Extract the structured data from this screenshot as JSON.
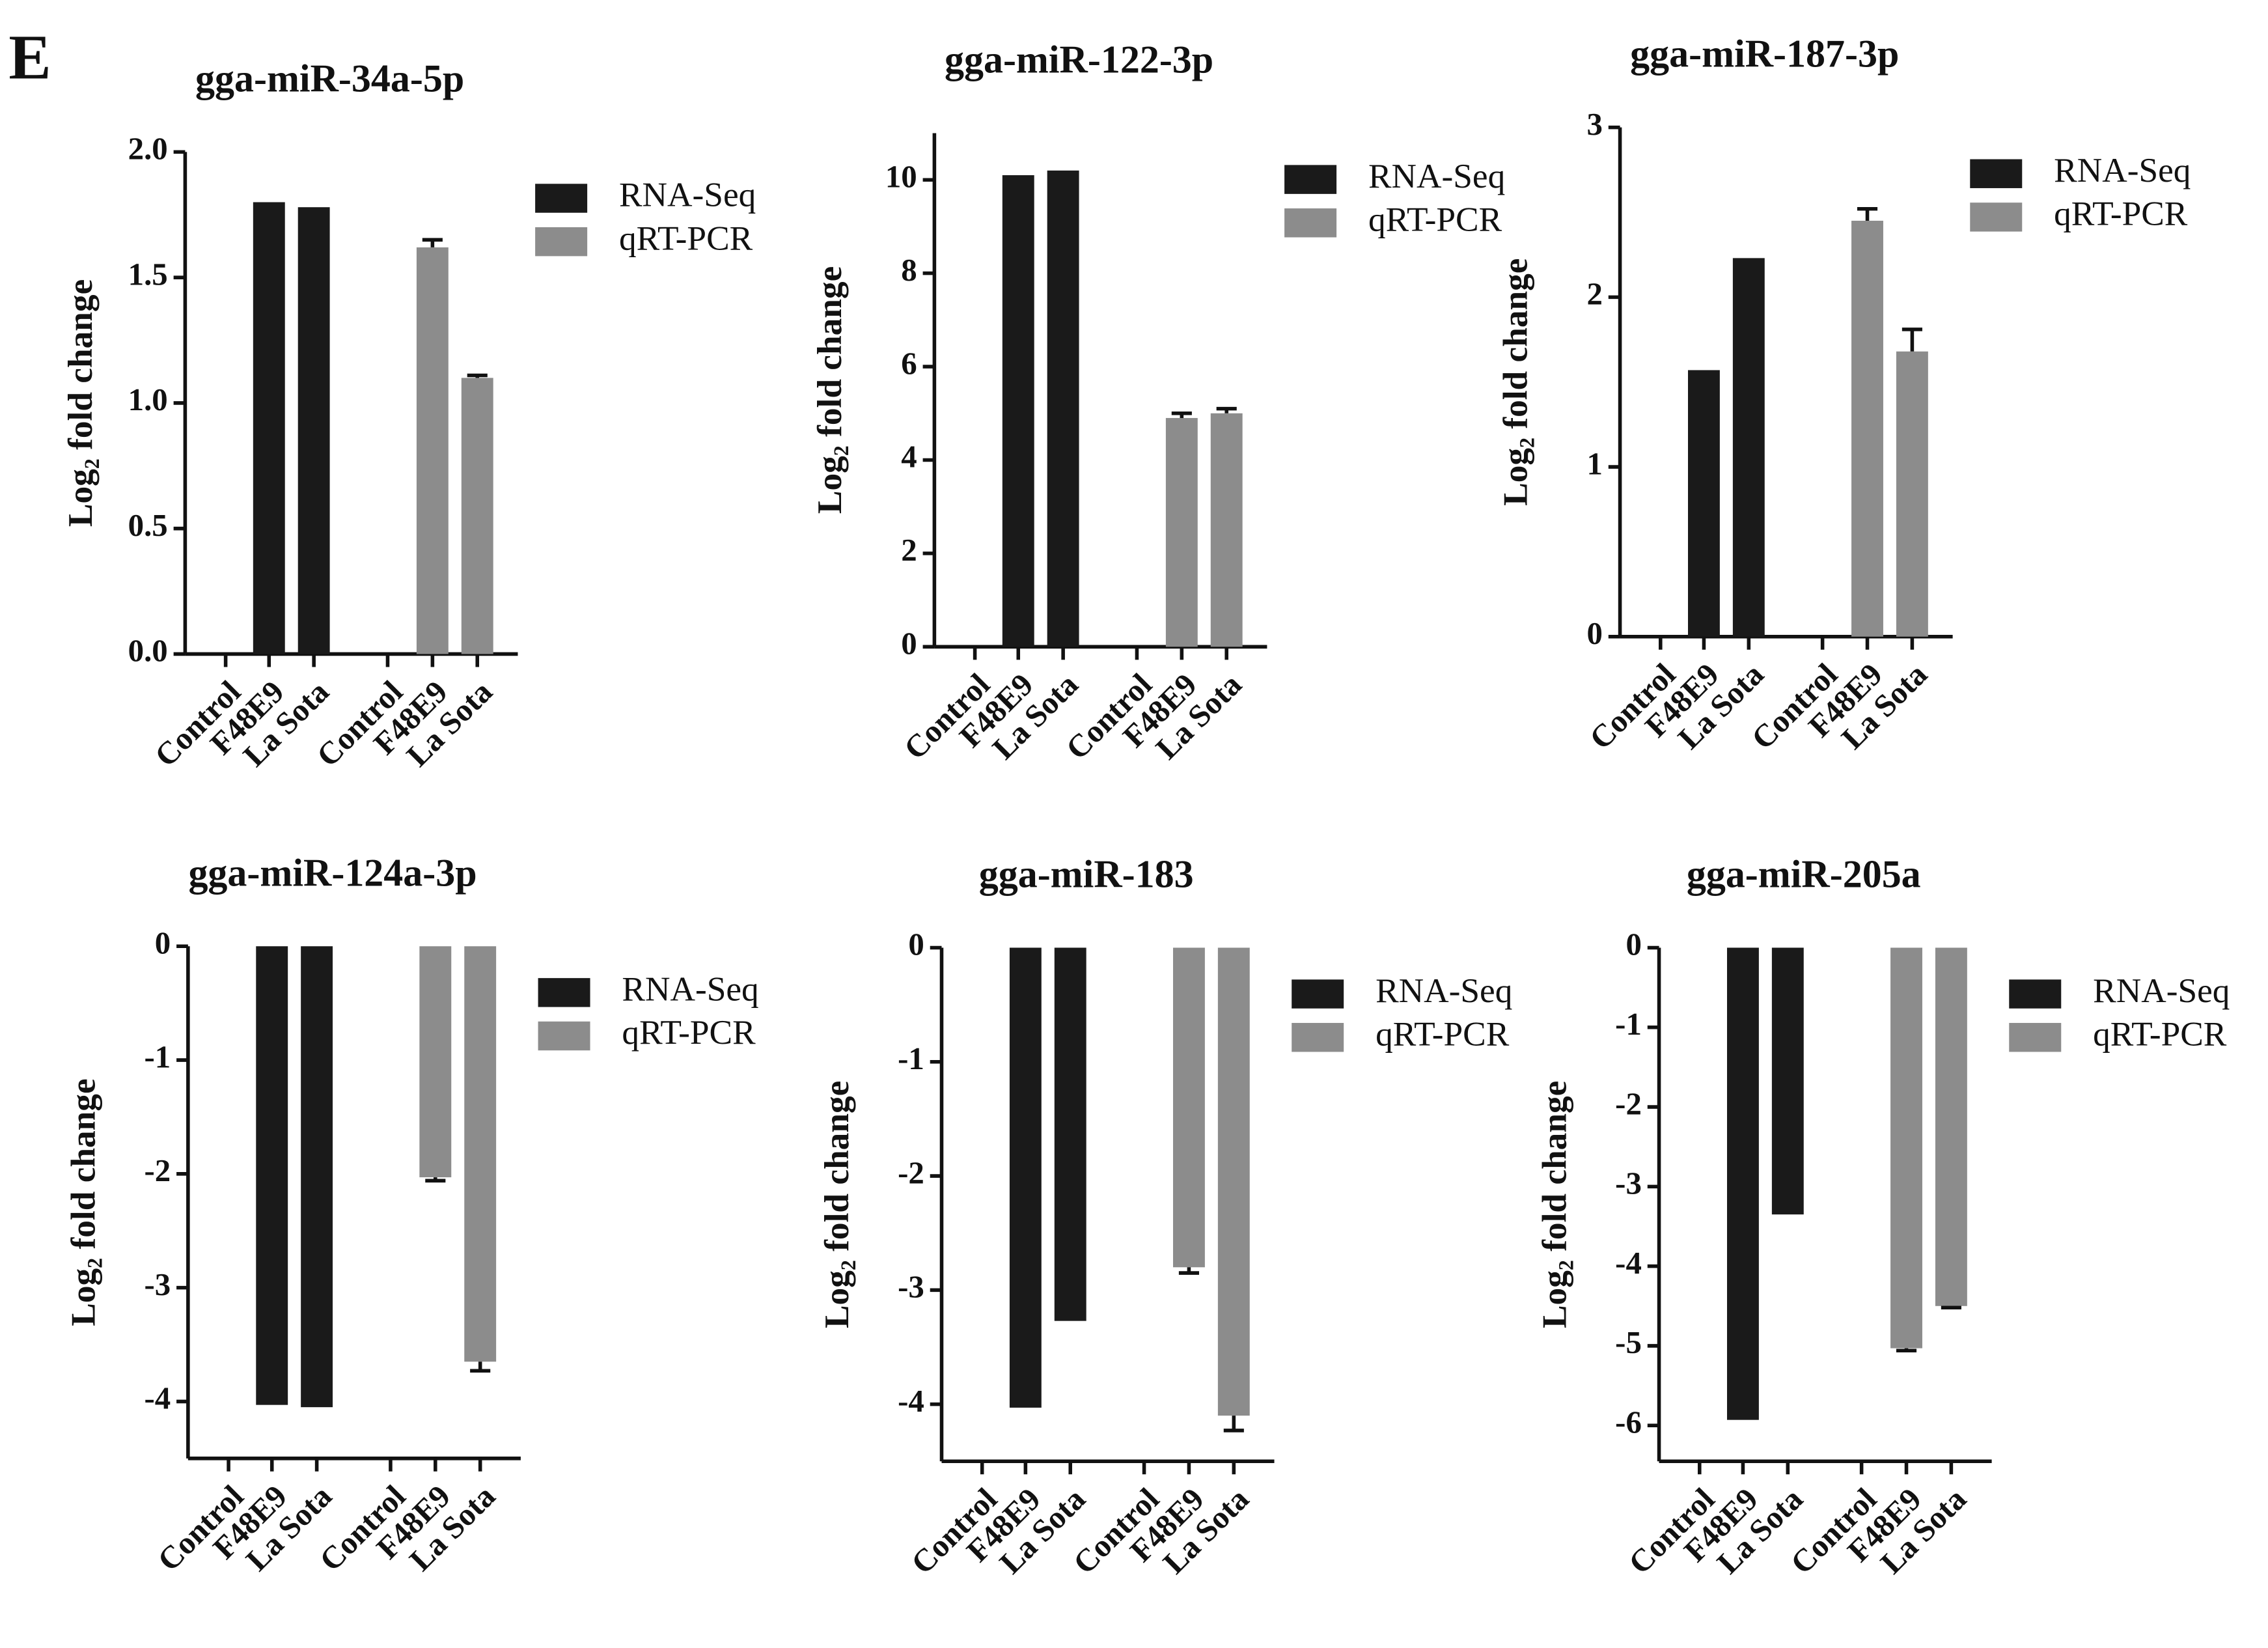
{
  "panel_label": "E",
  "chart_data": [
    {
      "type": "bar",
      "title": "gga-miR-34a-5p",
      "ylabel": "Log₂ fold change",
      "categories": [
        "Control",
        "F48E9",
        "La Sota",
        "Control",
        "F48E9",
        "La Sota"
      ],
      "ylim": [
        0,
        2
      ],
      "yticks": [
        {
          "value": 0,
          "label": "0.0"
        },
        {
          "value": 0.5,
          "label": "0.5"
        },
        {
          "value": 1,
          "label": "1.0"
        },
        {
          "value": 1.5,
          "label": "1.5"
        },
        {
          "value": 2,
          "label": "2.0"
        }
      ],
      "series": [
        {
          "name": "RNA-Seq",
          "color": "#1a1a1a",
          "values": [
            0,
            1.8,
            1.78,
            null,
            null,
            null
          ]
        },
        {
          "name": "qRT-PCR",
          "color": "#8c8c8c",
          "values": [
            null,
            null,
            null,
            0,
            1.62,
            1.1
          ],
          "errors": [
            null,
            null,
            null,
            null,
            0.03,
            0.01
          ]
        }
      ]
    },
    {
      "type": "bar",
      "title": "gga-miR-122-3p",
      "ylabel": "Log₂ fold change",
      "categories": [
        "Control",
        "F48E9",
        "La Sota",
        "Control",
        "F48E9",
        "La Sota"
      ],
      "ylim": [
        0,
        11
      ],
      "yticks": [
        0,
        2,
        4,
        6,
        8,
        10
      ],
      "series": [
        {
          "name": "RNA-Seq",
          "color": "#1a1a1a",
          "values": [
            0,
            10.1,
            10.2,
            null,
            null,
            null
          ]
        },
        {
          "name": "qRT-PCR",
          "color": "#8c8c8c",
          "values": [
            null,
            null,
            null,
            0,
            4.9,
            5.0
          ],
          "errors": [
            null,
            null,
            null,
            null,
            0.1,
            0.1
          ]
        }
      ]
    },
    {
      "type": "bar",
      "title": "gga-miR-187-3p",
      "ylabel": "Log₂ fold change",
      "categories": [
        "Control",
        "F48E9",
        "La Sota",
        "Control",
        "F48E9",
        "La Sota"
      ],
      "ylim": [
        0,
        3
      ],
      "yticks": [
        0,
        1,
        2,
        3
      ],
      "series": [
        {
          "name": "RNA-Seq",
          "color": "#1a1a1a",
          "values": [
            0,
            1.57,
            2.23,
            null,
            null,
            null
          ]
        },
        {
          "name": "qRT-PCR",
          "color": "#8c8c8c",
          "values": [
            null,
            null,
            null,
            0,
            2.45,
            1.68
          ],
          "errors": [
            null,
            null,
            null,
            null,
            0.07,
            0.13
          ]
        }
      ]
    },
    {
      "type": "bar",
      "title": "gga-miR-124a-3p",
      "ylabel": "Log₂ fold change",
      "categories": [
        "Control",
        "F48E9",
        "La Sota",
        "Control",
        "F48E9",
        "La Sota"
      ],
      "ylim": [
        -4.5,
        0
      ],
      "yticks": [
        0,
        -1,
        -2,
        -3,
        -4
      ],
      "series": [
        {
          "name": "RNA-Seq",
          "color": "#1a1a1a",
          "values": [
            0,
            -4.03,
            -4.05,
            null,
            null,
            null
          ]
        },
        {
          "name": "qRT-PCR",
          "color": "#8c8c8c",
          "values": [
            null,
            null,
            null,
            0,
            -2.03,
            -3.65
          ],
          "errors": [
            null,
            null,
            null,
            null,
            0.03,
            0.08
          ]
        }
      ]
    },
    {
      "type": "bar",
      "title": "gga-miR-183",
      "ylabel": "Log₂ fold change",
      "categories": [
        "Control",
        "F48E9",
        "La Sota",
        "Control",
        "F48E9",
        "La Sota"
      ],
      "ylim": [
        -4.5,
        0
      ],
      "yticks": [
        0,
        -1,
        -2,
        -3,
        -4
      ],
      "series": [
        {
          "name": "RNA-Seq",
          "color": "#1a1a1a",
          "values": [
            0,
            -4.03,
            -3.27,
            null,
            null,
            null
          ]
        },
        {
          "name": "qRT-PCR",
          "color": "#8c8c8c",
          "values": [
            null,
            null,
            null,
            0,
            -2.8,
            -4.1
          ],
          "errors": [
            null,
            null,
            null,
            null,
            0.05,
            0.13
          ]
        }
      ]
    },
    {
      "type": "bar",
      "title": "gga-miR-205a",
      "ylabel": "Log₂ fold change",
      "categories": [
        "Control",
        "F48E9",
        "La Sota",
        "Control",
        "F48E9",
        "La Sota"
      ],
      "ylim": [
        -6.45,
        0
      ],
      "yticks": [
        0,
        -1,
        -2,
        -3,
        -4,
        -5,
        -6
      ],
      "series": [
        {
          "name": "RNA-Seq",
          "color": "#1a1a1a",
          "values": [
            0,
            -5.93,
            -3.35,
            null,
            null,
            null
          ]
        },
        {
          "name": "qRT-PCR",
          "color": "#8c8c8c",
          "values": [
            null,
            null,
            null,
            0,
            -5.03,
            -4.5
          ],
          "errors": [
            null,
            null,
            null,
            null,
            0.03,
            0.02
          ]
        }
      ]
    }
  ]
}
